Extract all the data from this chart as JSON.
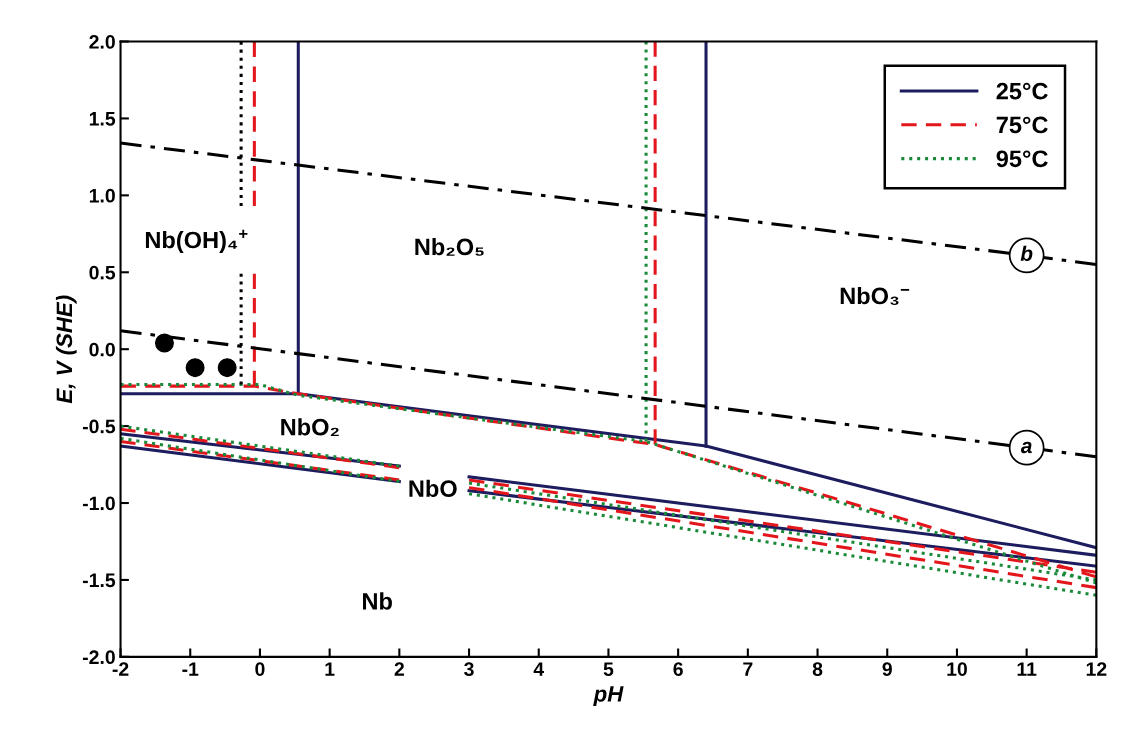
{
  "chart_data": {
    "type": "line",
    "xlabel": "pH",
    "ylabel": "E, V (SHE)",
    "xlim": [
      -2,
      12
    ],
    "ylim": [
      -2,
      2
    ],
    "xticks": [
      -2,
      -1,
      0,
      1,
      2,
      3,
      4,
      5,
      6,
      7,
      8,
      9,
      10,
      11,
      12
    ],
    "yticks": [
      {
        "value": -2,
        "label": "-2.0"
      },
      {
        "value": -1.5,
        "label": "-1.5"
      },
      {
        "value": -1,
        "label": "-1.0"
      },
      {
        "value": -0.5,
        "label": "-0.5"
      },
      {
        "value": 0,
        "label": "0.0"
      },
      {
        "value": 0.5,
        "label": "0.5"
      },
      {
        "value": 1,
        "label": "1.0"
      },
      {
        "value": 1.5,
        "label": "1.5"
      },
      {
        "value": 2,
        "label": "2.0"
      }
    ],
    "grid": false,
    "legend": "top right",
    "marker": "none",
    "series": [
      {
        "name": "25°C",
        "color": "#1c1c5e",
        "line_style": "solid",
        "x": [
          -2,
          0.55,
          6.4,
          12
        ],
        "values": [
          -0.29,
          -0.29,
          -0.63,
          -1.29
        ]
      },
      {
        "color": "#1c1c5e",
        "line_style": "solid",
        "x": [
          0.55,
          0.55
        ],
        "values": [
          2.0,
          -0.29
        ]
      },
      {
        "color": "#1c1c5e",
        "line_style": "solid",
        "x": [
          6.4,
          6.4
        ],
        "values": [
          2.0,
          -0.63
        ]
      },
      {
        "color": "#1c1c5e",
        "line_style": "solid",
        "x": [
          -2,
          2
        ],
        "values": [
          -0.55,
          -0.76
        ]
      },
      {
        "color": "#1c1c5e",
        "line_style": "solid",
        "x": [
          -2,
          2
        ],
        "values": [
          -0.63,
          -0.86
        ]
      },
      {
        "color": "#1c1c5e",
        "line_style": "solid",
        "x": [
          3,
          12
        ],
        "values": [
          -0.83,
          -1.34
        ]
      },
      {
        "color": "#1c1c5e",
        "line_style": "solid",
        "x": [
          3,
          12
        ],
        "values": [
          -0.92,
          -1.41
        ]
      },
      {
        "name": "75°C",
        "color": "#e3161c",
        "line_style": "dashed",
        "x": [
          -2,
          -0.08,
          0.55,
          5.67,
          12
        ],
        "values": [
          -0.24,
          -0.24,
          -0.29,
          -0.62,
          -1.48
        ]
      },
      {
        "color": "#e3161c",
        "line_style": "dashed",
        "x": [
          -0.08,
          -0.08
        ],
        "values": [
          2.0,
          0.93
        ]
      },
      {
        "color": "#e3161c",
        "line_style": "dashed",
        "x": [
          -0.08,
          -0.08
        ],
        "values": [
          0.49,
          -0.24
        ]
      },
      {
        "color": "#e3161c",
        "line_style": "dashed",
        "x": [
          5.67,
          5.67
        ],
        "values": [
          2.0,
          -0.62
        ]
      },
      {
        "color": "#e3161c",
        "line_style": "dashed",
        "x": [
          -2,
          2
        ],
        "values": [
          -0.52,
          -0.77
        ]
      },
      {
        "color": "#e3161c",
        "line_style": "dashed",
        "x": [
          -2,
          2
        ],
        "values": [
          -0.6,
          -0.85
        ]
      },
      {
        "color": "#e3161c",
        "line_style": "dashed",
        "x": [
          3,
          12
        ],
        "values": [
          -0.85,
          -1.45
        ]
      },
      {
        "color": "#e3161c",
        "line_style": "dashed",
        "x": [
          3,
          12
        ],
        "values": [
          -0.9,
          -1.55
        ]
      },
      {
        "name": "95°C",
        "color": "#1a8a3a",
        "line_style": "dotted",
        "x": [
          -2,
          0.0,
          0.55,
          5.54,
          12
        ],
        "values": [
          -0.23,
          -0.23,
          -0.3,
          -0.6,
          -1.52
        ]
      },
      {
        "color": "#1a8a3a",
        "line_style": "dotted",
        "x": [
          5.54,
          5.54
        ],
        "values": [
          2.0,
          -0.6
        ]
      },
      {
        "color": "#1a8a3a",
        "line_style": "dotted",
        "x": [
          -2,
          2
        ],
        "values": [
          -0.5,
          -0.76
        ]
      },
      {
        "color": "#1a8a3a",
        "line_style": "dotted",
        "x": [
          -2,
          2
        ],
        "values": [
          -0.58,
          -0.86
        ]
      },
      {
        "color": "#1a8a3a",
        "line_style": "dotted",
        "x": [
          3,
          12
        ],
        "values": [
          -0.87,
          -1.5
        ]
      },
      {
        "color": "#1a8a3a",
        "line_style": "dotted",
        "x": [
          3,
          12
        ],
        "values": [
          -0.94,
          -1.6
        ]
      },
      {
        "color": "#000000",
        "line_style": "dotted",
        "x": [
          -0.27,
          -0.27
        ],
        "values": [
          2.0,
          0.93
        ]
      },
      {
        "color": "#000000",
        "line_style": "dotted",
        "x": [
          -0.27,
          -0.27
        ],
        "values": [
          0.49,
          -0.23
        ]
      },
      {
        "name": "a",
        "color": "#000000",
        "line_style": "dashdot",
        "x": [
          -2,
          11.0,
          12
        ],
        "values": [
          0.12,
          -0.64,
          -0.7
        ]
      },
      {
        "name": "b",
        "color": "#000000",
        "line_style": "dashdot",
        "x": [
          -2,
          11.0,
          12
        ],
        "values": [
          1.34,
          0.61,
          0.55
        ]
      },
      {
        "type": "scatter",
        "color": "#000000",
        "marker": "circle",
        "x": [
          -1.37,
          -0.93,
          -0.47
        ],
        "values": [
          0.04,
          -0.12,
          -0.12
        ]
      }
    ],
    "annotations": [
      "Nb(OH)₄$^{+}$",
      "Nb₂O₅",
      "NbO₃$^{−}$",
      "NbO₂",
      "NbO",
      "Nb"
    ]
  }
}
